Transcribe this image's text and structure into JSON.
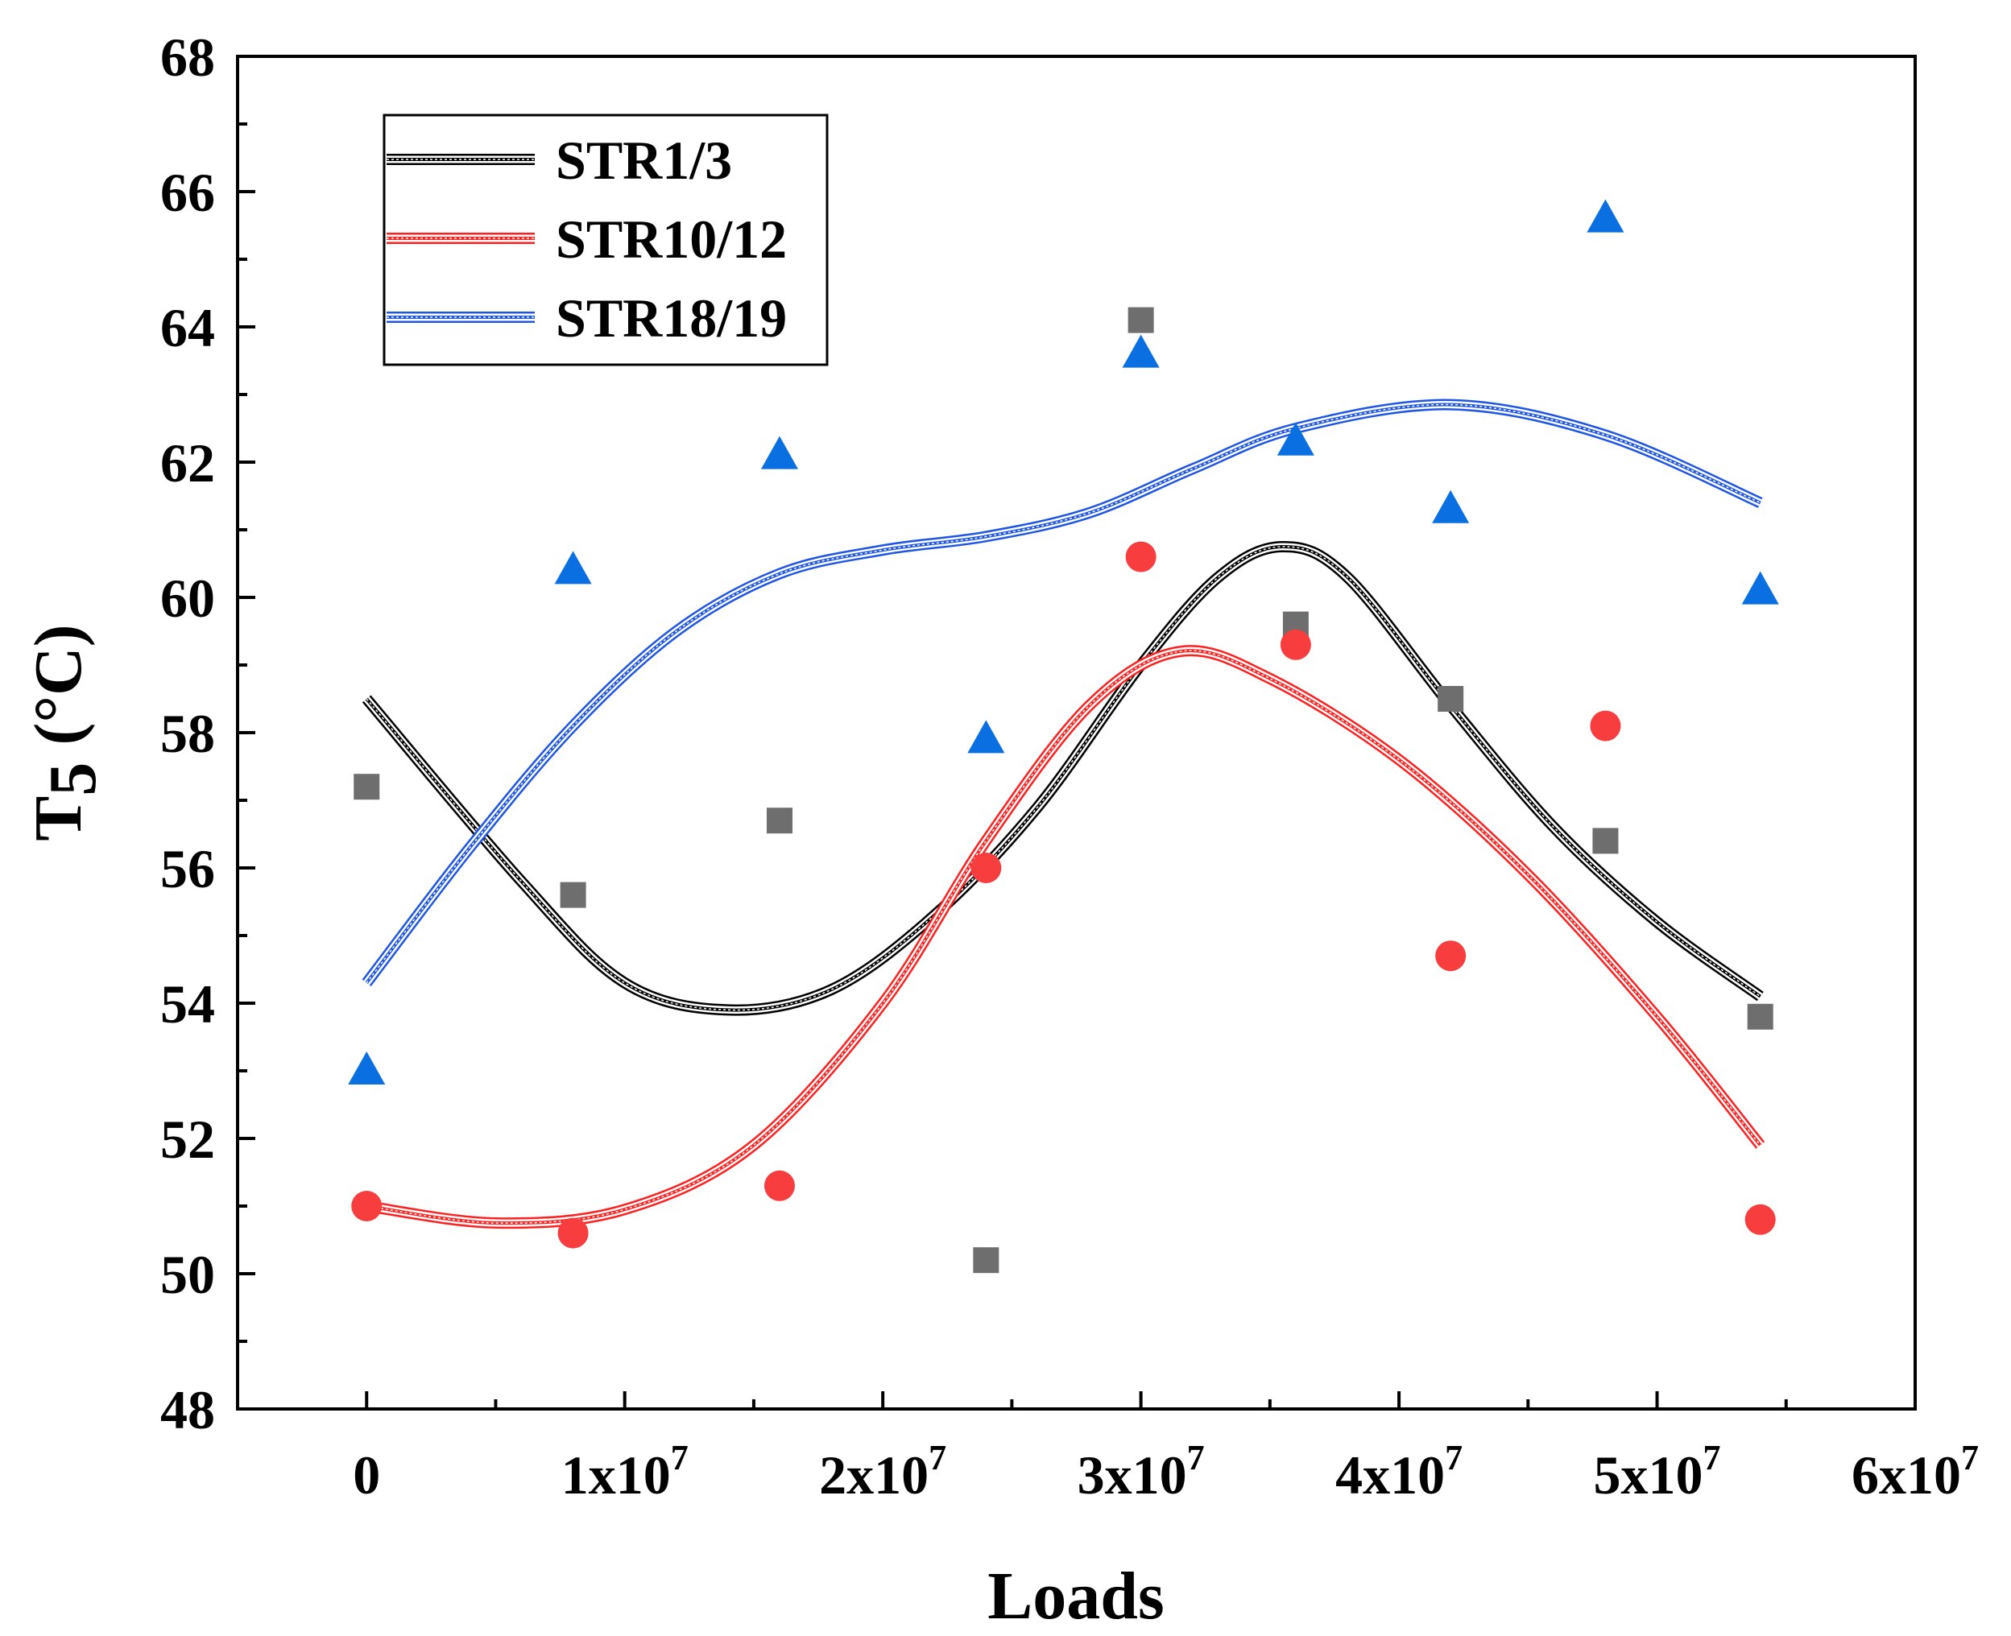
{
  "chart_data": {
    "type": "scatter",
    "xlabel": "Loads",
    "ylabel_main": "T",
    "ylabel_sub": "5",
    "ylabel_unit": "(°C)",
    "xlim": [
      -5000000,
      60000000
    ],
    "ylim": [
      48,
      68
    ],
    "x_ticks": [
      {
        "value": 0,
        "base": "0",
        "exp": ""
      },
      {
        "value": 10000000,
        "base": "1x10",
        "exp": "7"
      },
      {
        "value": 20000000,
        "base": "2x10",
        "exp": "7"
      },
      {
        "value": 30000000,
        "base": "3x10",
        "exp": "7"
      },
      {
        "value": 40000000,
        "base": "4x10",
        "exp": "7"
      },
      {
        "value": 50000000,
        "base": "5x10",
        "exp": "7"
      },
      {
        "value": 60000000,
        "base": "6x10",
        "exp": "7"
      }
    ],
    "y_ticks": [
      48,
      50,
      52,
      54,
      56,
      58,
      60,
      62,
      64,
      66,
      68
    ],
    "legend_position": "top-left",
    "series": [
      {
        "name": "STR1/3",
        "color": "#000000",
        "marker": "square",
        "marker_color": "#6e6e6e",
        "x": [
          0,
          8000000,
          16000000,
          24000000,
          30000000,
          36000000,
          42000000,
          48000000,
          54000000
        ],
        "y": [
          57.2,
          55.6,
          56.7,
          50.2,
          64.1,
          59.6,
          58.5,
          56.4,
          53.8
        ],
        "fit_x": [
          0,
          6000000,
          10000000,
          14000000,
          18000000,
          22000000,
          26000000,
          30000000,
          33000000,
          35500000,
          38000000,
          42000000,
          46000000,
          50000000,
          54000000
        ],
        "fit_y": [
          58.5,
          55.8,
          54.3,
          53.9,
          54.2,
          55.3,
          56.9,
          59.0,
          60.3,
          60.75,
          60.3,
          58.4,
          56.6,
          55.2,
          54.1
        ]
      },
      {
        "name": "STR10/12",
        "color": "#ff1f1f",
        "marker": "circle",
        "marker_color": "#f73d3d",
        "x": [
          0,
          8000000,
          16000000,
          24000000,
          30000000,
          36000000,
          42000000,
          48000000,
          54000000
        ],
        "y": [
          51.0,
          50.6,
          51.3,
          56.0,
          60.6,
          59.3,
          54.7,
          58.1,
          50.8
        ],
        "fit_x": [
          0,
          5000000,
          10000000,
          15000000,
          20000000,
          24000000,
          28000000,
          31500000,
          35000000,
          40000000,
          45000000,
          50000000,
          54000000
        ],
        "fit_y": [
          51.0,
          50.75,
          50.95,
          51.9,
          54.0,
          56.4,
          58.4,
          59.2,
          58.8,
          57.6,
          55.9,
          53.8,
          51.9
        ]
      },
      {
        "name": "STR18/19",
        "color": "#1f55e6",
        "marker": "triangle",
        "marker_color": "#0a6fe0",
        "x": [
          0,
          8000000,
          16000000,
          24000000,
          30000000,
          36000000,
          42000000,
          48000000,
          54000000
        ],
        "y": [
          53.0,
          60.4,
          62.1,
          57.9,
          63.6,
          62.3,
          61.3,
          65.6,
          60.1
        ],
        "fit_x": [
          0,
          4000000,
          8000000,
          12000000,
          16000000,
          20000000,
          24000000,
          28000000,
          32000000,
          36000000,
          42000000,
          48000000,
          54000000
        ],
        "fit_y": [
          54.3,
          56.3,
          58.1,
          59.5,
          60.35,
          60.7,
          60.9,
          61.25,
          61.9,
          62.5,
          62.85,
          62.4,
          61.4
        ]
      }
    ]
  }
}
